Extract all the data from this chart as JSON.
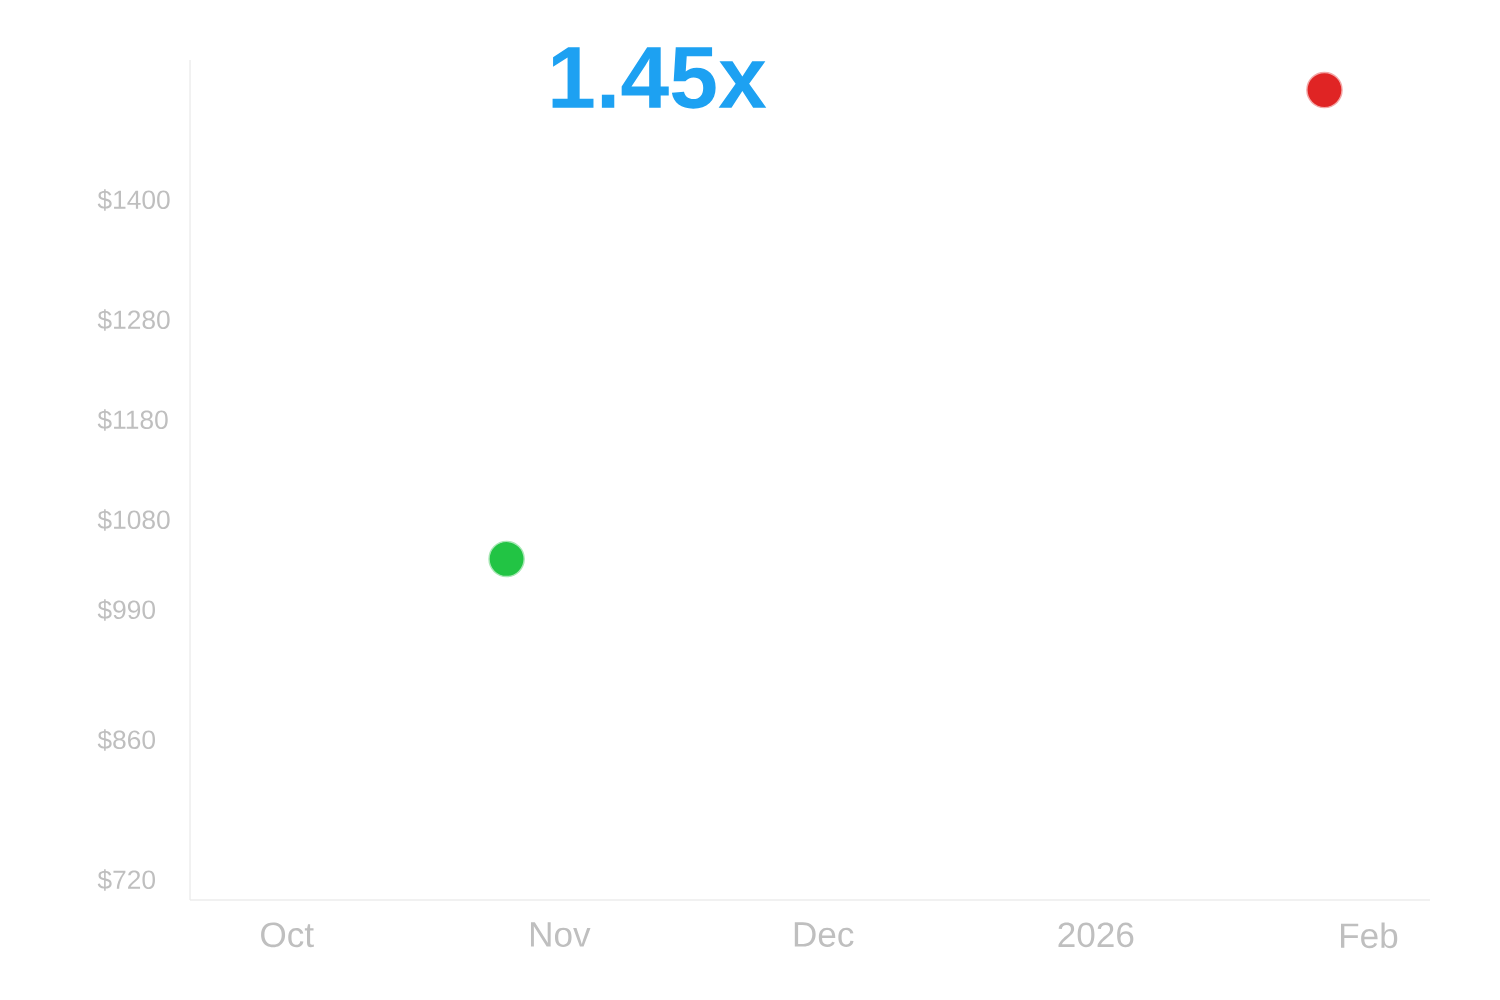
{
  "chart_data": {
    "type": "scatter",
    "title": "1.45x",
    "x": [
      "2025-10-26",
      "2026-01-27"
    ],
    "values": [
      1041,
      1510
    ],
    "colors": [
      "#22c444",
      "#e02424"
    ],
    "xlim": [
      "2025-09-20",
      "2026-02-08"
    ],
    "ylim": [
      700,
      1540
    ],
    "xticks": [
      {
        "value": "2025-10-01",
        "label": "Oct"
      },
      {
        "value": "2025-11-01",
        "label": "Nov"
      },
      {
        "value": "2025-12-01",
        "label": "Dec"
      },
      {
        "value": "2026-01-01",
        "label": "2026"
      },
      {
        "value": "2026-02-01",
        "label": "Feb"
      }
    ],
    "yticks": [
      {
        "value": 720,
        "label": "$720"
      },
      {
        "value": 860,
        "label": "$860"
      },
      {
        "value": 990,
        "label": "$990"
      },
      {
        "value": 1080,
        "label": "$1080"
      },
      {
        "value": 1180,
        "label": "$1180"
      },
      {
        "value": 1280,
        "label": "$1280"
      },
      {
        "value": 1400,
        "label": "$1400"
      }
    ],
    "grid": false
  }
}
